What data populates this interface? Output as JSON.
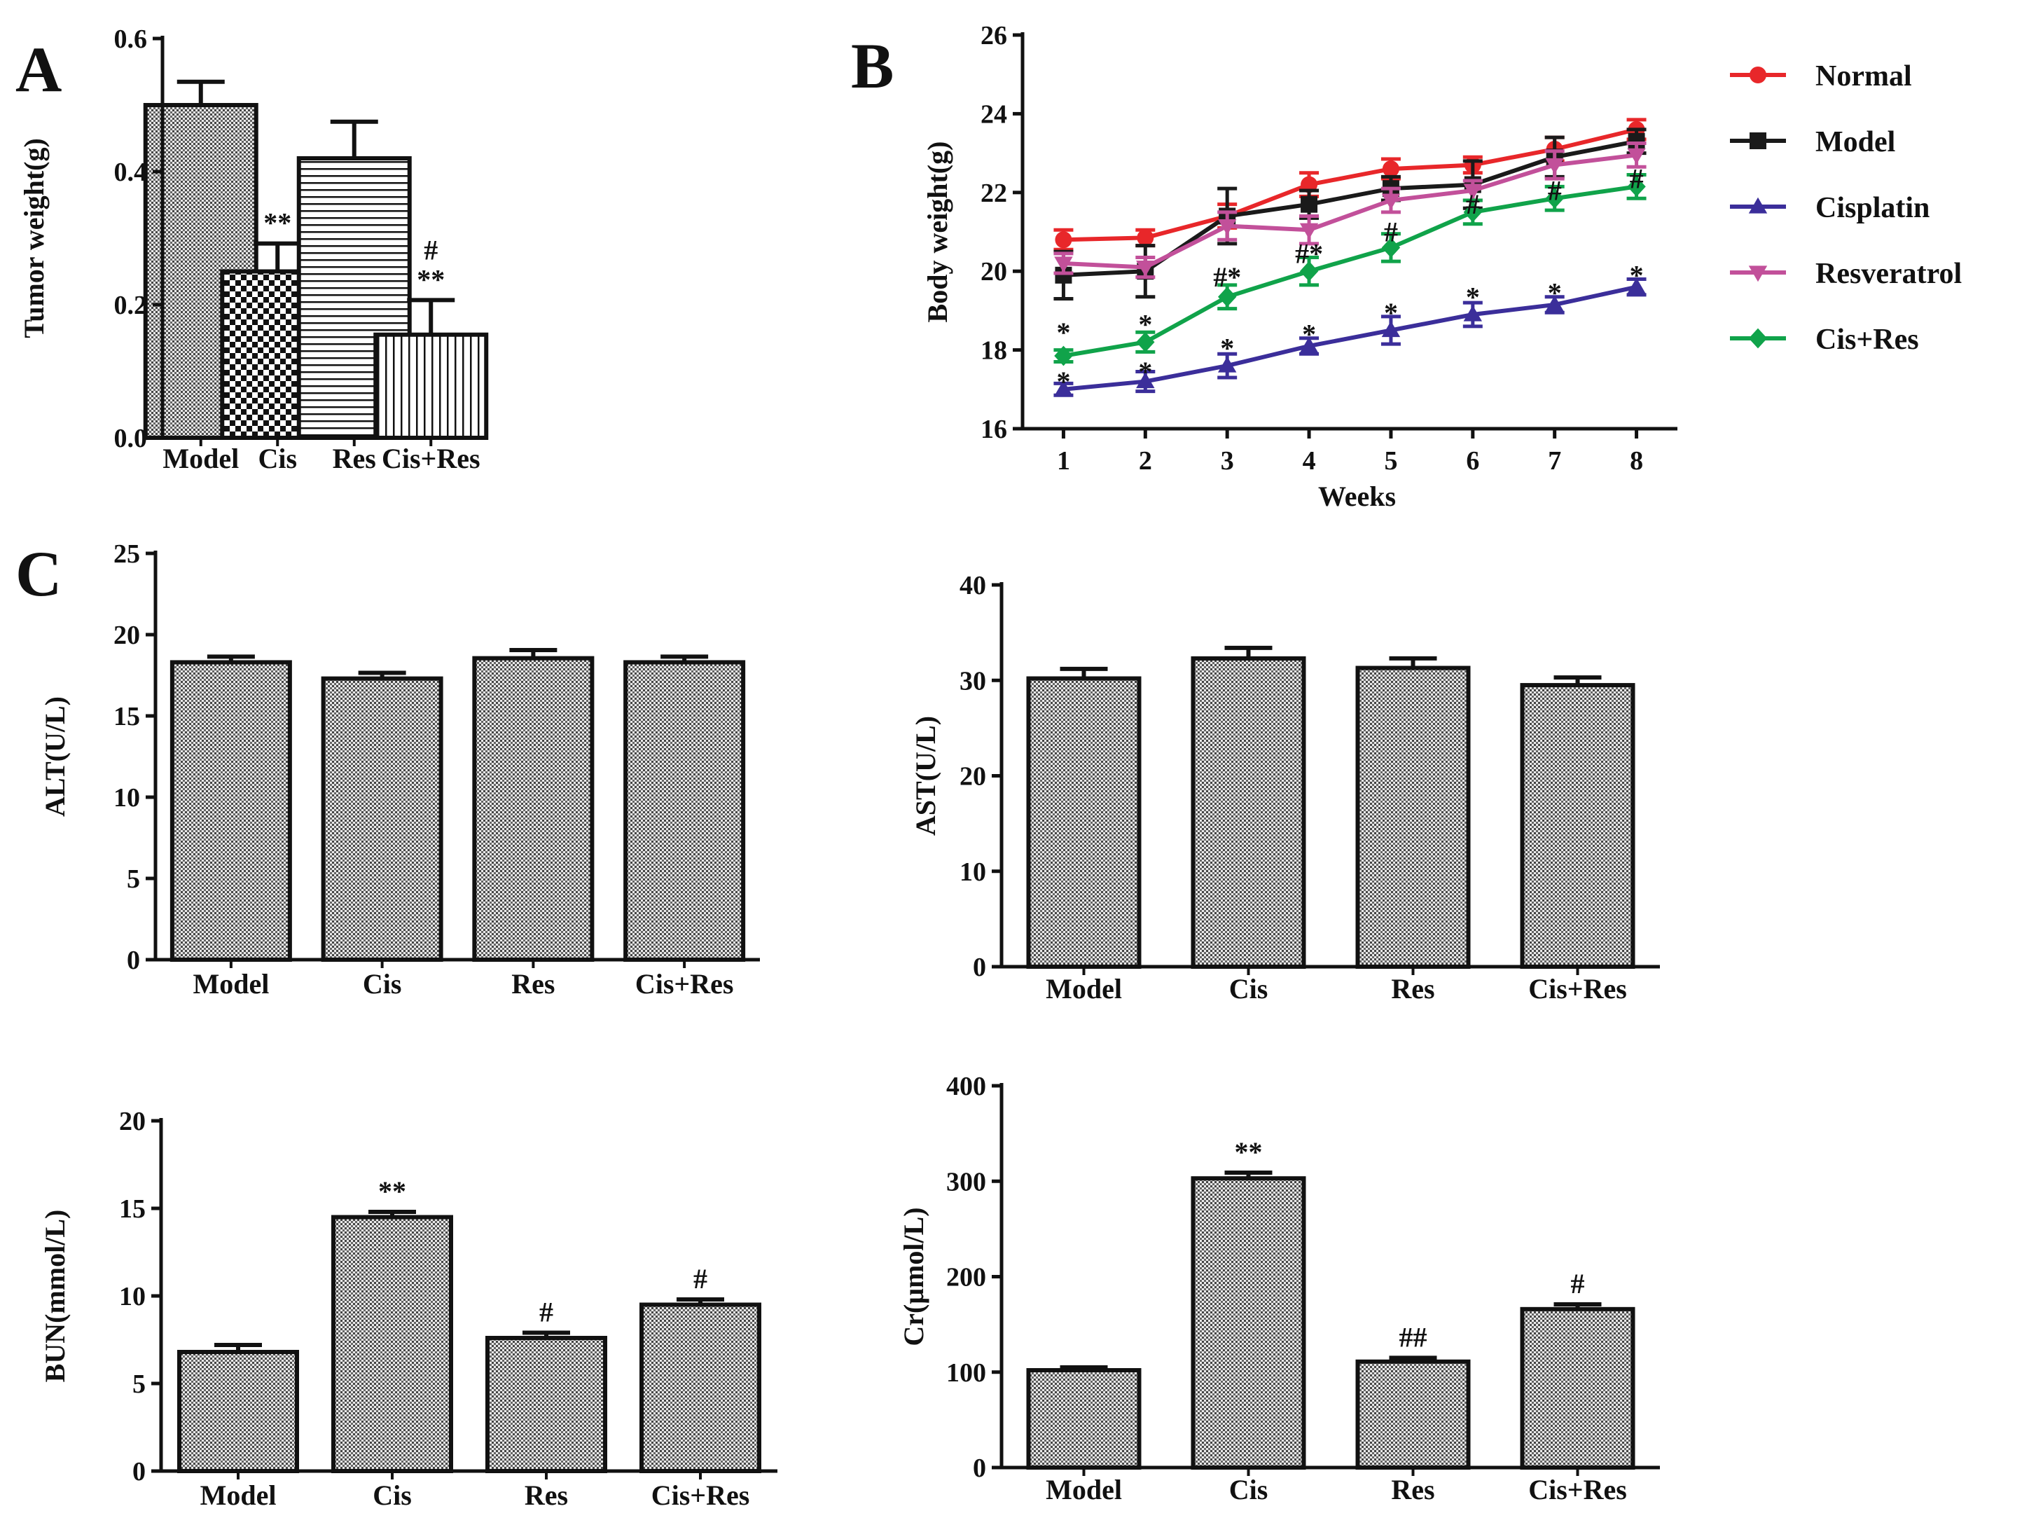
{
  "panel_labels": [
    "A",
    "B",
    "C"
  ],
  "chart_data": [
    {
      "id": "tumor",
      "type": "bar",
      "ylabel": "Tumor weight(g)",
      "ylim": [
        0,
        0.6
      ],
      "yticks": [
        "0.0",
        "0.2",
        "0.4",
        "0.6"
      ],
      "yticks_num": [
        0,
        0.2,
        0.4,
        0.6
      ],
      "categories": [
        "Model",
        "Cis",
        "Res",
        "Cis+Res"
      ],
      "values": [
        0.5,
        0.25,
        0.42,
        0.155
      ],
      "errors": [
        0.035,
        0.042,
        0.055,
        0.052
      ],
      "patterns": [
        "dots",
        "checker",
        "hlines",
        "vlines"
      ],
      "annotations": [
        "",
        "**",
        "",
        "#\n**"
      ]
    },
    {
      "id": "bodyweight",
      "type": "line",
      "xlabel": "Weeks",
      "ylabel": "Body weight(g)",
      "xlim": [
        0.5,
        8.5
      ],
      "ylim": [
        16,
        26
      ],
      "x": [
        1,
        2,
        3,
        4,
        5,
        6,
        7,
        8
      ],
      "xticks": [
        "1",
        "2",
        "3",
        "4",
        "5",
        "6",
        "7",
        "8"
      ],
      "yticks": [
        "16",
        "18",
        "20",
        "22",
        "24",
        "26"
      ],
      "yticks_num": [
        16,
        18,
        20,
        22,
        24,
        26
      ],
      "series": [
        {
          "name": "Normal",
          "color": "#e8272a",
          "marker": "circle",
          "values": [
            20.8,
            20.85,
            21.4,
            22.2,
            22.6,
            22.7,
            23.1,
            23.6
          ],
          "errors": [
            0.25,
            0.2,
            0.3,
            0.3,
            0.25,
            0.2,
            0.3,
            0.25
          ]
        },
        {
          "name": "Model",
          "color": "#1a1a1a",
          "marker": "square",
          "values": [
            19.9,
            20.0,
            21.4,
            21.7,
            22.1,
            22.2,
            22.9,
            23.3
          ],
          "errors": [
            0.6,
            0.65,
            0.7,
            0.35,
            0.3,
            0.6,
            0.5,
            0.3
          ]
        },
        {
          "name": "Cisplatin",
          "color": "#3b2e9a",
          "marker": "triangle-up",
          "values": [
            17.0,
            17.2,
            17.6,
            18.1,
            18.5,
            18.9,
            19.15,
            19.6
          ],
          "errors": [
            0.15,
            0.25,
            0.3,
            0.2,
            0.35,
            0.3,
            0.2,
            0.2
          ]
        },
        {
          "name": "Resveratrol",
          "color": "#c2509a",
          "marker": "triangle-down",
          "values": [
            20.2,
            20.1,
            21.15,
            21.05,
            21.8,
            22.05,
            22.7,
            22.95
          ],
          "errors": [
            0.25,
            0.25,
            0.35,
            0.35,
            0.3,
            0.25,
            0.35,
            0.3
          ]
        },
        {
          "name": "Cis+Res",
          "color": "#10a34a",
          "marker": "diamond",
          "values": [
            17.85,
            18.2,
            19.35,
            20.0,
            20.6,
            21.5,
            21.85,
            22.15
          ],
          "errors": [
            0.15,
            0.25,
            0.3,
            0.35,
            0.35,
            0.3,
            0.3,
            0.3
          ]
        }
      ],
      "annotations": [
        {
          "x": 1,
          "y": 18.6,
          "text": "*"
        },
        {
          "x": 1,
          "y": 17.35,
          "text": "*"
        },
        {
          "x": 2,
          "y": 18.8,
          "text": "*"
        },
        {
          "x": 2,
          "y": 17.6,
          "text": "*"
        },
        {
          "x": 3,
          "y": 20.0,
          "text": "#*"
        },
        {
          "x": 3,
          "y": 18.2,
          "text": "*"
        },
        {
          "x": 4,
          "y": 20.6,
          "text": "#*"
        },
        {
          "x": 4,
          "y": 18.55,
          "text": "*"
        },
        {
          "x": 5,
          "y": 21.15,
          "text": "#"
        },
        {
          "x": 5,
          "y": 19.1,
          "text": "*"
        },
        {
          "x": 6,
          "y": 21.85,
          "text": "#"
        },
        {
          "x": 6,
          "y": 19.5,
          "text": "*"
        },
        {
          "x": 7,
          "y": 22.2,
          "text": "#"
        },
        {
          "x": 7,
          "y": 19.6,
          "text": "*"
        },
        {
          "x": 8,
          "y": 22.5,
          "text": "#"
        },
        {
          "x": 8,
          "y": 20.05,
          "text": "*"
        }
      ]
    },
    {
      "id": "alt",
      "type": "bar",
      "ylabel": "ALT(U/L)",
      "ylim": [
        0,
        25
      ],
      "yticks": [
        "0",
        "5",
        "10",
        "15",
        "20",
        "25"
      ],
      "yticks_num": [
        0,
        5,
        10,
        15,
        20,
        25
      ],
      "categories": [
        "Model",
        "Cis",
        "Res",
        "Cis+Res"
      ],
      "values": [
        18.3,
        17.3,
        18.55,
        18.3
      ],
      "errors": [
        0.35,
        0.35,
        0.5,
        0.35
      ],
      "patterns": [
        "dots",
        "dots",
        "dots",
        "dots"
      ],
      "annotations": [
        "",
        "",
        "",
        ""
      ]
    },
    {
      "id": "ast",
      "type": "bar",
      "ylabel": "AST(U/L)",
      "ylim": [
        0,
        40
      ],
      "yticks": [
        "0",
        "10",
        "20",
        "30",
        "40"
      ],
      "yticks_num": [
        0,
        10,
        20,
        30,
        40
      ],
      "categories": [
        "Model",
        "Cis",
        "Res",
        "Cis+Res"
      ],
      "values": [
        30.2,
        32.3,
        31.3,
        29.5
      ],
      "errors": [
        1.0,
        1.1,
        1.0,
        0.8
      ],
      "patterns": [
        "dots",
        "dots",
        "dots",
        "dots"
      ],
      "annotations": [
        "",
        "",
        "",
        ""
      ]
    },
    {
      "id": "bun",
      "type": "bar",
      "ylabel": "BUN(mmol/L)",
      "ylim": [
        0,
        20
      ],
      "yticks": [
        "0",
        "5",
        "10",
        "15",
        "20"
      ],
      "yticks_num": [
        0,
        5,
        10,
        15,
        20
      ],
      "categories": [
        "Model",
        "Cis",
        "Res",
        "Cis+Res"
      ],
      "values": [
        6.8,
        14.5,
        7.6,
        9.5
      ],
      "errors": [
        0.4,
        0.3,
        0.3,
        0.3
      ],
      "patterns": [
        "dots",
        "dots",
        "dots",
        "dots"
      ],
      "annotations": [
        "",
        "**",
        "#",
        "#"
      ]
    },
    {
      "id": "cr",
      "type": "bar",
      "ylabel": "Cr(μmol/L)",
      "ylim": [
        0,
        400
      ],
      "yticks": [
        "0",
        "100",
        "200",
        "300",
        "400"
      ],
      "yticks_num": [
        0,
        100,
        200,
        300,
        400
      ],
      "categories": [
        "Model",
        "Cis",
        "Res",
        "Cis+Res"
      ],
      "values": [
        102,
        303,
        111,
        166
      ],
      "errors": [
        3,
        6,
        4,
        5
      ],
      "patterns": [
        "dots",
        "dots",
        "dots",
        "dots"
      ],
      "annotations": [
        "",
        "**",
        "##",
        "#"
      ]
    }
  ]
}
